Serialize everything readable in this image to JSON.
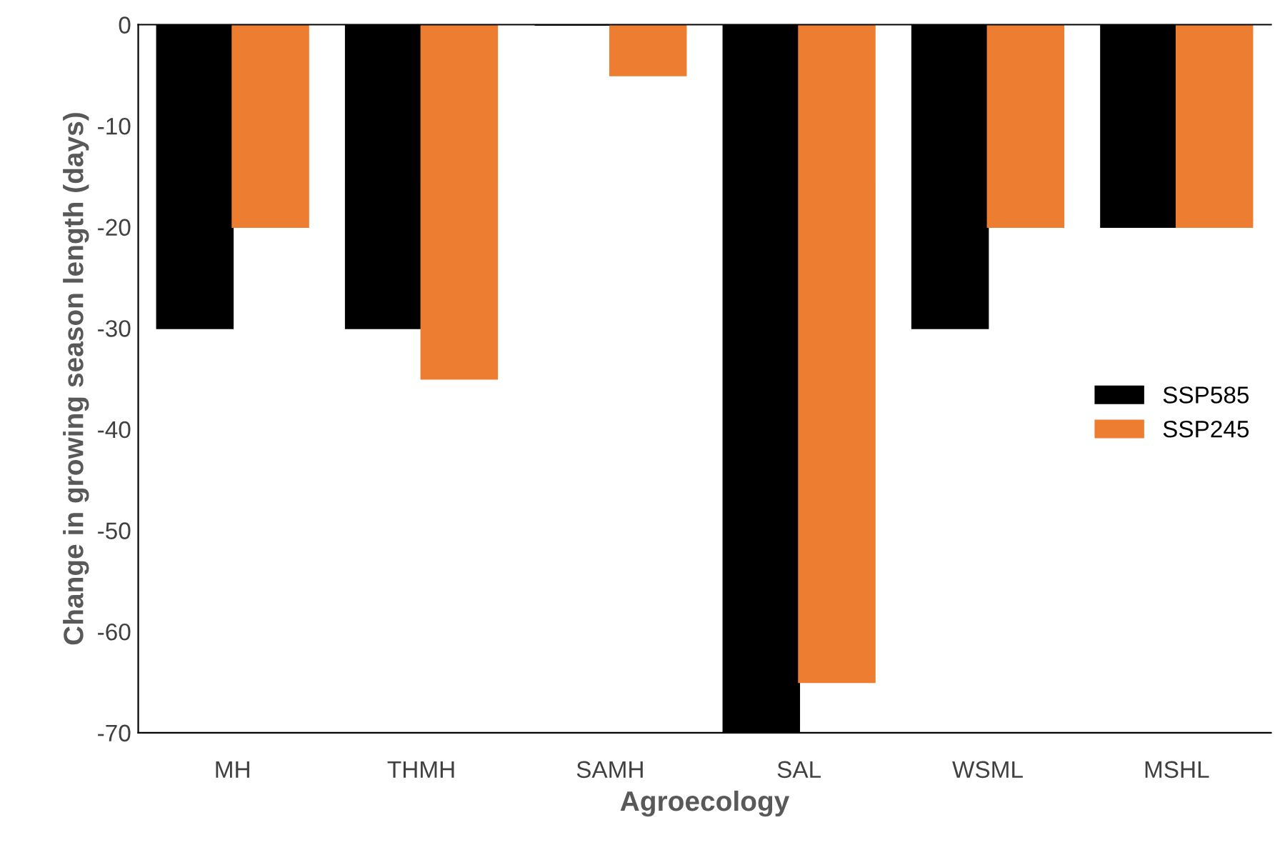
{
  "chart_data": {
    "type": "bar",
    "xlabel": "Agroecology",
    "ylabel": "Change in growing season length (days)",
    "categories": [
      "MH",
      "THMH",
      "SAMH",
      "SAL",
      "WSML",
      "MSHL"
    ],
    "series": [
      {
        "name": "SSP585",
        "color": "#000000",
        "values": [
          -30,
          -30,
          0,
          -70,
          -30,
          -20
        ]
      },
      {
        "name": "SSP245",
        "color": "#ed7d31",
        "values": [
          -20,
          -35,
          -5,
          -65,
          -20,
          -20
        ]
      }
    ],
    "ylim": [
      -70,
      0
    ],
    "yticks": [
      -70,
      -60,
      -50,
      -40,
      -30,
      -20,
      -10,
      0
    ],
    "grid": false,
    "legend": "right"
  }
}
